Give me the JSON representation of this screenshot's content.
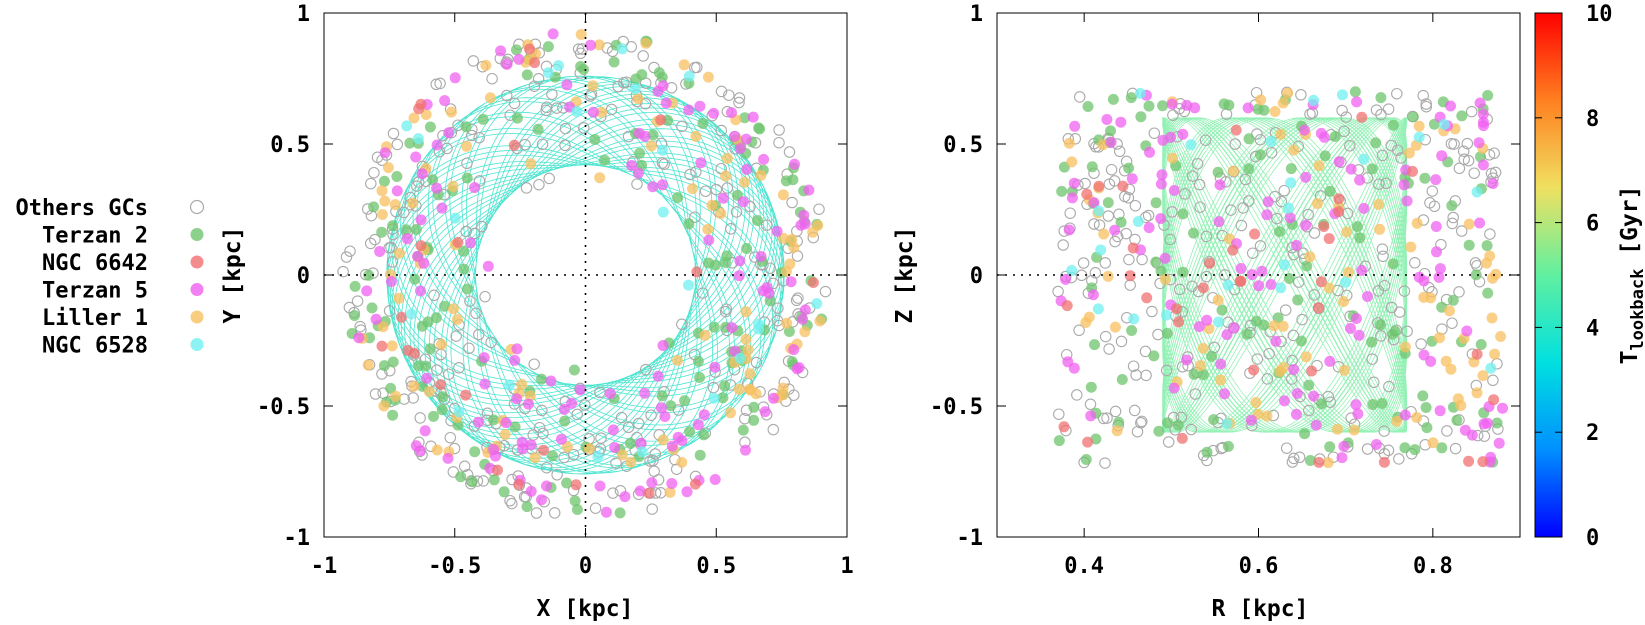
{
  "legend": {
    "items": [
      {
        "label": "Others GCs",
        "color": "#aaaaaa",
        "style": "open"
      },
      {
        "label": "Terzan 2",
        "color": "#6ec46e",
        "style": "filled"
      },
      {
        "label": "NGC 6642",
        "color": "#f07070",
        "style": "filled"
      },
      {
        "label": "Terzan 5",
        "color": "#f060f0",
        "style": "filled"
      },
      {
        "label": "Liller 1",
        "color": "#f8c060",
        "style": "filled"
      },
      {
        "label": "NGC 6528",
        "color": "#70f0f0",
        "style": "filled"
      }
    ]
  },
  "chart_data": [
    {
      "type": "scatter",
      "panel": "left",
      "xlabel": "X [kpc]",
      "ylabel": "Y [kpc]",
      "xlim": [
        -1,
        1
      ],
      "ylim": [
        -1,
        1
      ],
      "xticks": [
        -1,
        -0.5,
        0,
        0.5,
        1
      ],
      "yticks": [
        -1,
        -0.5,
        0,
        0.5,
        1
      ],
      "xtick_labels": [
        "-1",
        "-0.5",
        "0",
        "0.5",
        "1"
      ],
      "ytick_labels": [
        "-1",
        "-0.5",
        "0",
        "0.5",
        "1"
      ],
      "zero_lines": true,
      "distribution": "ring",
      "r_in": 0.35,
      "r_out": 0.93,
      "orbit": {
        "kind": "rosette",
        "r_min": 0.42,
        "r_max": 0.76,
        "color": "#30e0c8"
      },
      "series_counts": {
        "Others GCs": 320,
        "Terzan 2": 160,
        "NGC 6642": 22,
        "Terzan 5": 130,
        "Liller 1": 110,
        "NGC 6528": 22
      }
    },
    {
      "type": "scatter",
      "panel": "right",
      "xlabel": "R [kpc]",
      "ylabel": "Z [kpc]",
      "xlim": [
        0.3,
        0.9
      ],
      "ylim": [
        -1,
        1
      ],
      "xticks": [
        0.4,
        0.6,
        0.8
      ],
      "yticks": [
        -1,
        -0.5,
        0,
        0.5,
        1
      ],
      "xtick_labels": [
        "0.4",
        "0.6",
        "0.8"
      ],
      "ytick_labels": [
        "-1",
        "-0.5",
        "0",
        "0.5",
        "1"
      ],
      "zero_lines": true,
      "distribution": "box",
      "r_range": [
        0.37,
        0.88
      ],
      "z_range": [
        -0.72,
        0.7
      ],
      "orbit": {
        "kind": "box",
        "r_min": 0.49,
        "r_max": 0.77,
        "z_max": 0.6,
        "color": "#80eea8"
      },
      "series_counts": {
        "Others GCs": 300,
        "Terzan 2": 130,
        "NGC 6642": 35,
        "Terzan 5": 120,
        "Liller 1": 85,
        "NGC 6528": 25
      }
    }
  ],
  "colorbar": {
    "label_main": "T",
    "label_sub": "lookback",
    "label_unit": " [Gyr]",
    "min": 0,
    "max": 10,
    "ticks": [
      0,
      2,
      4,
      6,
      8,
      10
    ],
    "tick_labels": [
      "0",
      "2",
      "4",
      "6",
      "8",
      "10"
    ],
    "stops": [
      "#0000ff",
      "#0090ff",
      "#00e0e0",
      "#60f0a0",
      "#f0e060",
      "#ff8020",
      "#ff0000"
    ]
  }
}
